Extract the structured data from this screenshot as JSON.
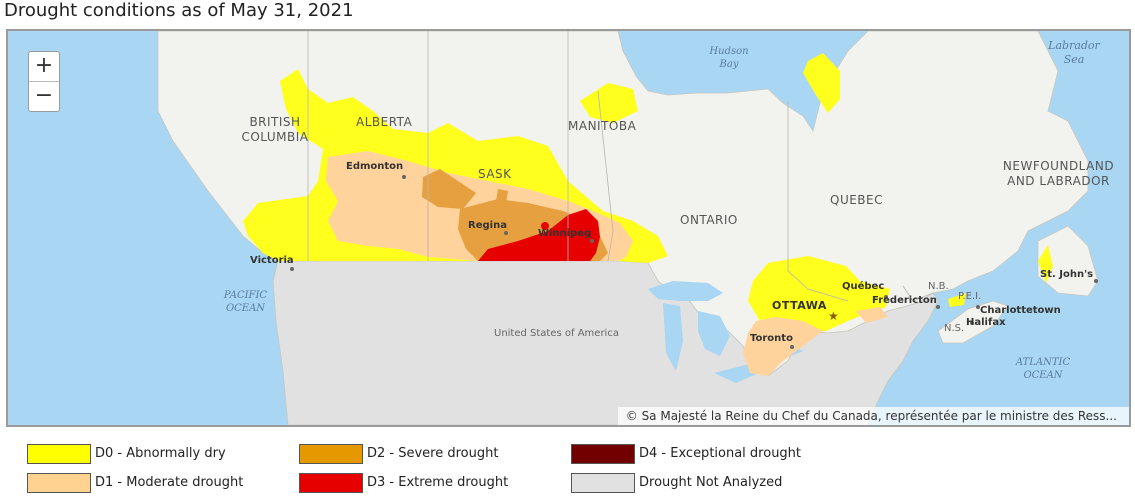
{
  "title": "Drought conditions as of May 31, 2021",
  "zoom": {
    "in_label": "+",
    "out_label": "−"
  },
  "attribution": "© Sa Majesté la Reine du Chef du Canada, représentée par le ministre des Ress...",
  "map_labels": {
    "hudson_bay": "Hudson Bay",
    "labrador_sea": "Labrador Sea",
    "british_columbia": "BRITISH COLUMBIA",
    "alberta": "ALBERTA",
    "manitoba": "MANITOBA",
    "sask": "SASK",
    "ontario": "ONTARIO",
    "quebec": "QUEBEC",
    "newfoundland": "NEWFOUNDLAND AND LABRADOR",
    "pacific_ocean": "PACIFIC OCEAN",
    "atlantic_ocean": "ATLANTIC OCEAN",
    "usa": "United States of America",
    "nb": "N.B.",
    "pei": "P.E.I.",
    "ns": "N.S."
  },
  "cities": {
    "edmonton": "Edmonton",
    "regina": "Regina",
    "winnipeg": "Winnipeg",
    "victoria": "Victoria",
    "ottawa": "OTTAWA",
    "toronto": "Toronto",
    "quebec_city": "Québec",
    "fredericton": "Fredericton",
    "charlottetown": "Charlottetown",
    "halifax": "Halifax",
    "st_johns": "St. John's"
  },
  "legend": [
    {
      "id": "d0",
      "label": "D0 - Abnormally dry",
      "color": "#ffff00"
    },
    {
      "id": "d1",
      "label": "D1 - Moderate drought",
      "color": "#ffd28f"
    },
    {
      "id": "d2",
      "label": "D2 - Severe drought",
      "color": "#e69800"
    },
    {
      "id": "d3",
      "label": "D3 - Extreme drought",
      "color": "#e60000"
    },
    {
      "id": "d4",
      "label": "D4 - Exceptional drought",
      "color": "#730000"
    },
    {
      "id": "na",
      "label": "Drought Not Analyzed",
      "color": "#e1e1e1"
    }
  ],
  "colors": {
    "water": "#a9d6f3",
    "land": "#f2f2ee",
    "not_analyzed": "#e1e1e1",
    "d0": "#ffff1e",
    "d1": "#ffd39b",
    "d2": "#e6a040",
    "d3": "#e60000"
  }
}
